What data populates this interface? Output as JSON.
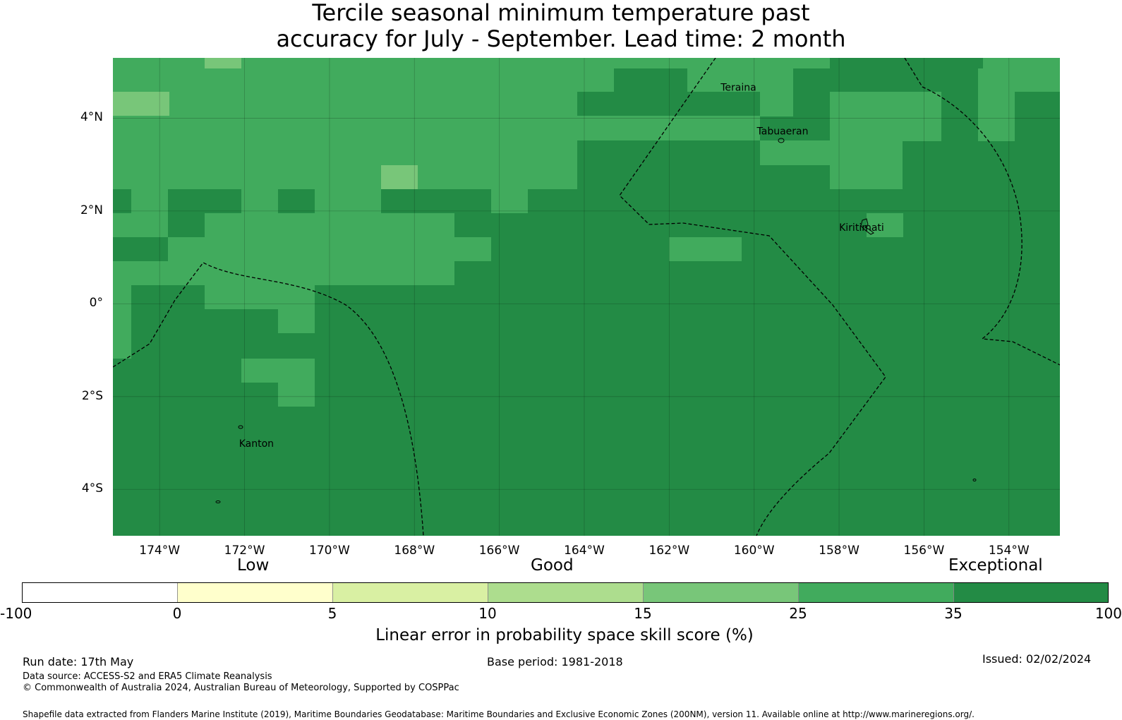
{
  "title_lines": [
    "Tercile seasonal minimum temperature past",
    "accuracy for July - September. Lead time: 2 month"
  ],
  "map": {
    "lon_range": [
      -175.1,
      -152.8
    ],
    "lat_range": [
      -5.0,
      5.3
    ],
    "lat_ticks": [
      {
        "value": 4,
        "label": "4°N"
      },
      {
        "value": 2,
        "label": "2°N"
      },
      {
        "value": 0,
        "label": "0°"
      },
      {
        "value": -2,
        "label": "2°S"
      },
      {
        "value": -4,
        "label": "4°S"
      }
    ],
    "lon_ticks": [
      {
        "value": -174,
        "label": "174°W"
      },
      {
        "value": -172,
        "label": "172°W"
      },
      {
        "value": -170,
        "label": "170°W"
      },
      {
        "value": -168,
        "label": "168°W"
      },
      {
        "value": -166,
        "label": "166°W"
      },
      {
        "value": -164,
        "label": "164°W"
      },
      {
        "value": -162,
        "label": "162°W"
      },
      {
        "value": -160,
        "label": "160°W"
      },
      {
        "value": -158,
        "label": "158°W"
      },
      {
        "value": -156,
        "label": "156°W"
      },
      {
        "value": -154,
        "label": "154°W"
      }
    ],
    "places": [
      {
        "name": "Teraina",
        "lon": -160.37,
        "lat": 4.65
      },
      {
        "name": "Tabuaeran",
        "lon": -159.33,
        "lat": 3.71
      },
      {
        "name": "Kiritimati",
        "lon": -157.47,
        "lat": 1.63
      },
      {
        "name": "Kanton",
        "lon": -171.72,
        "lat": -3.02
      }
    ],
    "colors": {
      "band_35_100": "#238b45",
      "band_25_35": "#41ab5d",
      "band_15_25": "#78c679"
    }
  },
  "colorbar": {
    "qual_labels": [
      "Low",
      "Good",
      "Exceptional"
    ],
    "ticks": [
      "-100",
      "0",
      "5",
      "10",
      "15",
      "25",
      "35",
      "100"
    ],
    "colors": [
      "#ffffff",
      "#ffffcc",
      "#d9f0a3",
      "#addd8e",
      "#78c679",
      "#41ab5d",
      "#238b45"
    ],
    "label": "Linear error in probability space skill score (%)"
  },
  "footer": {
    "run_date": "Run date: 17th May",
    "base_period": "Base period: 1981-2018",
    "issued": "Issued: 02/02/2024",
    "data_source": "Data source: ACCESS-S2 and ERA5 Climate Reanalysis",
    "copyright": "© Commonwealth of Australia 2024, Australian Bureau of Meteorology, Supported by COSPPac",
    "shapefile": "Shapefile data extracted from Flanders Marine Institute (2019), Maritime Boundaries Geodatabase: Maritime Boundaries and Exclusive Economic Zones (200NM), version 11. Available online at http://www.marineregions.org/."
  }
}
